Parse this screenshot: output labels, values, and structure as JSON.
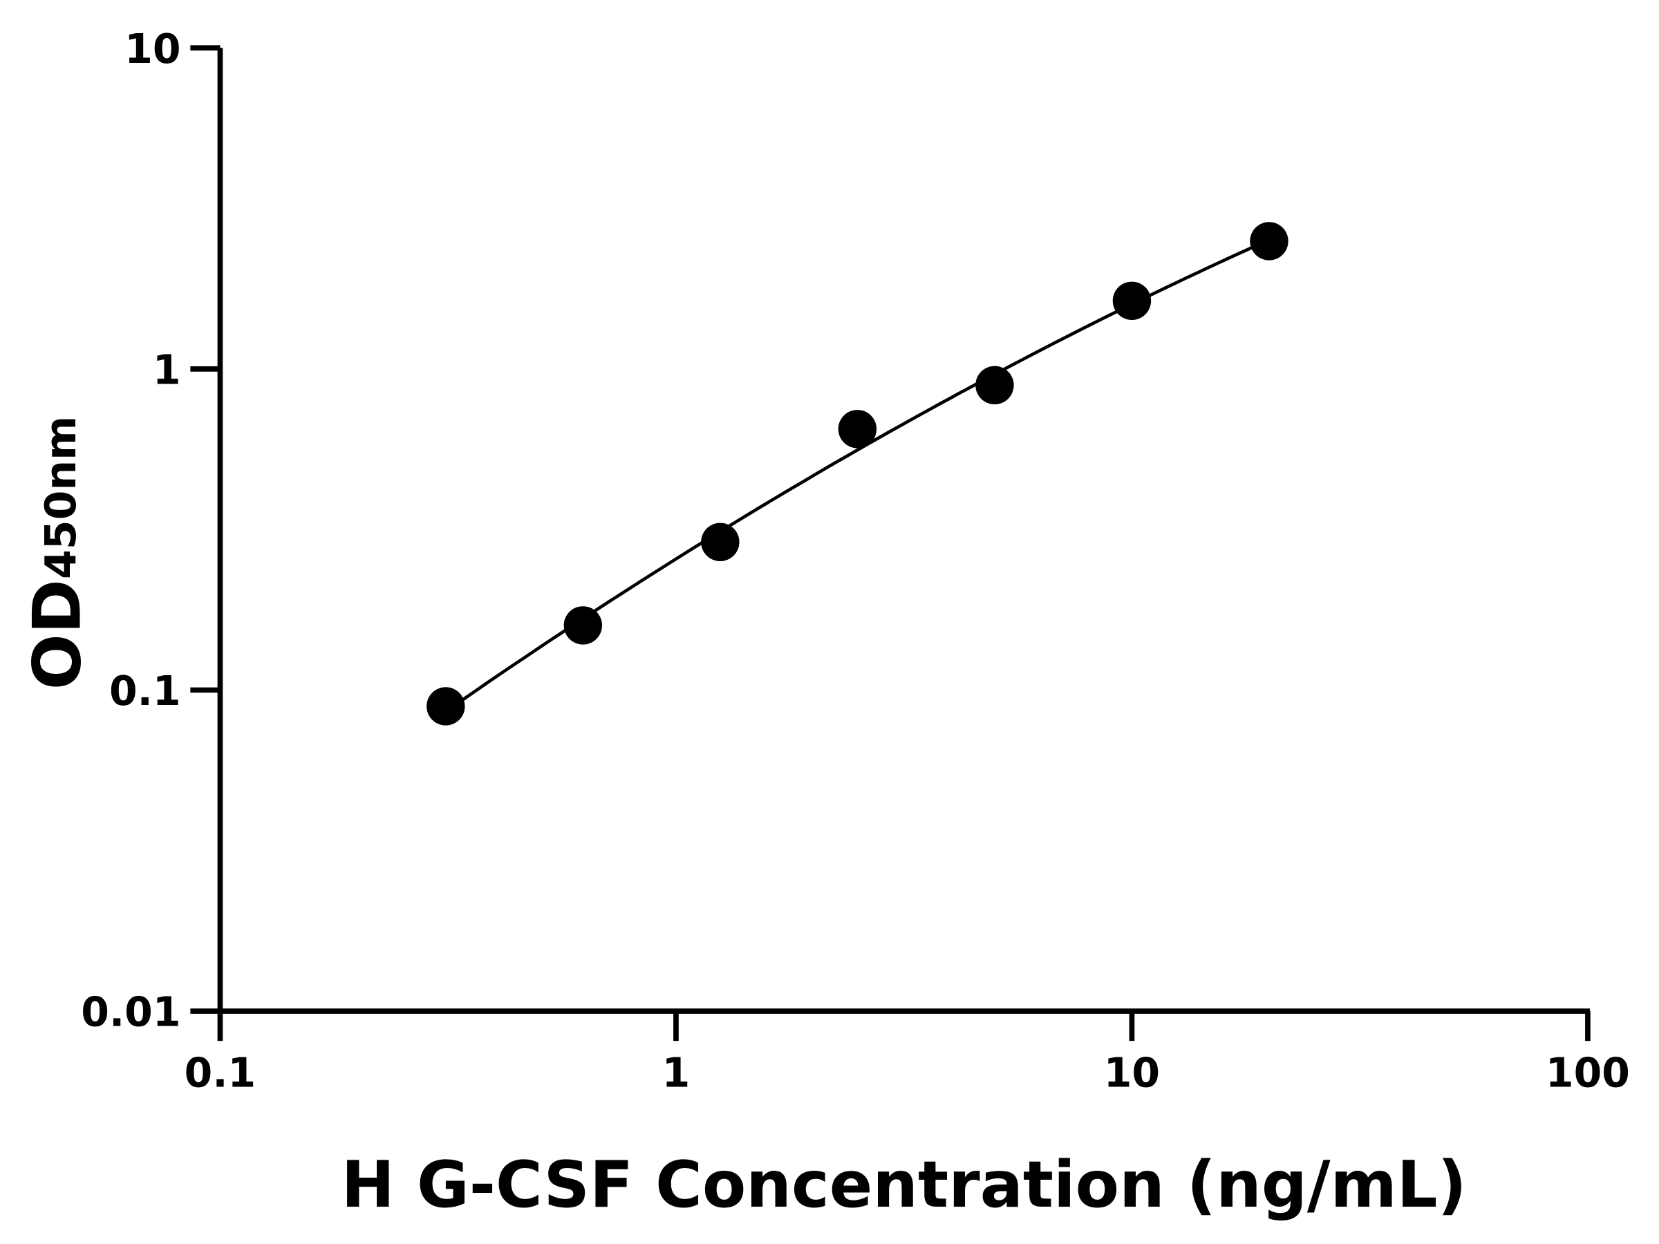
{
  "chart_data": {
    "type": "scatter",
    "title": "",
    "xlabel": "H G-CSF Concentration (ng/mL)",
    "ylabel": "OD",
    "ylabel_subscript": "450nm",
    "x_scale": "log",
    "y_scale": "log",
    "xlim": [
      0.1,
      100
    ],
    "ylim": [
      0.01,
      10
    ],
    "x_ticks": [
      "0.1",
      "1",
      "10",
      "100"
    ],
    "y_ticks": [
      "0.01",
      "0.1",
      "1",
      "10"
    ],
    "grid": false,
    "legend": "none",
    "fit_line": true,
    "colors": {
      "points": "#000000",
      "line": "#000000",
      "axes": "#000000"
    },
    "series": [
      {
        "x": [
          0.3125,
          0.625,
          1.25,
          2.5,
          5,
          10,
          20
        ],
        "y": [
          0.089,
          0.159,
          0.289,
          0.65,
          0.89,
          1.63,
          2.5
        ]
      }
    ]
  }
}
